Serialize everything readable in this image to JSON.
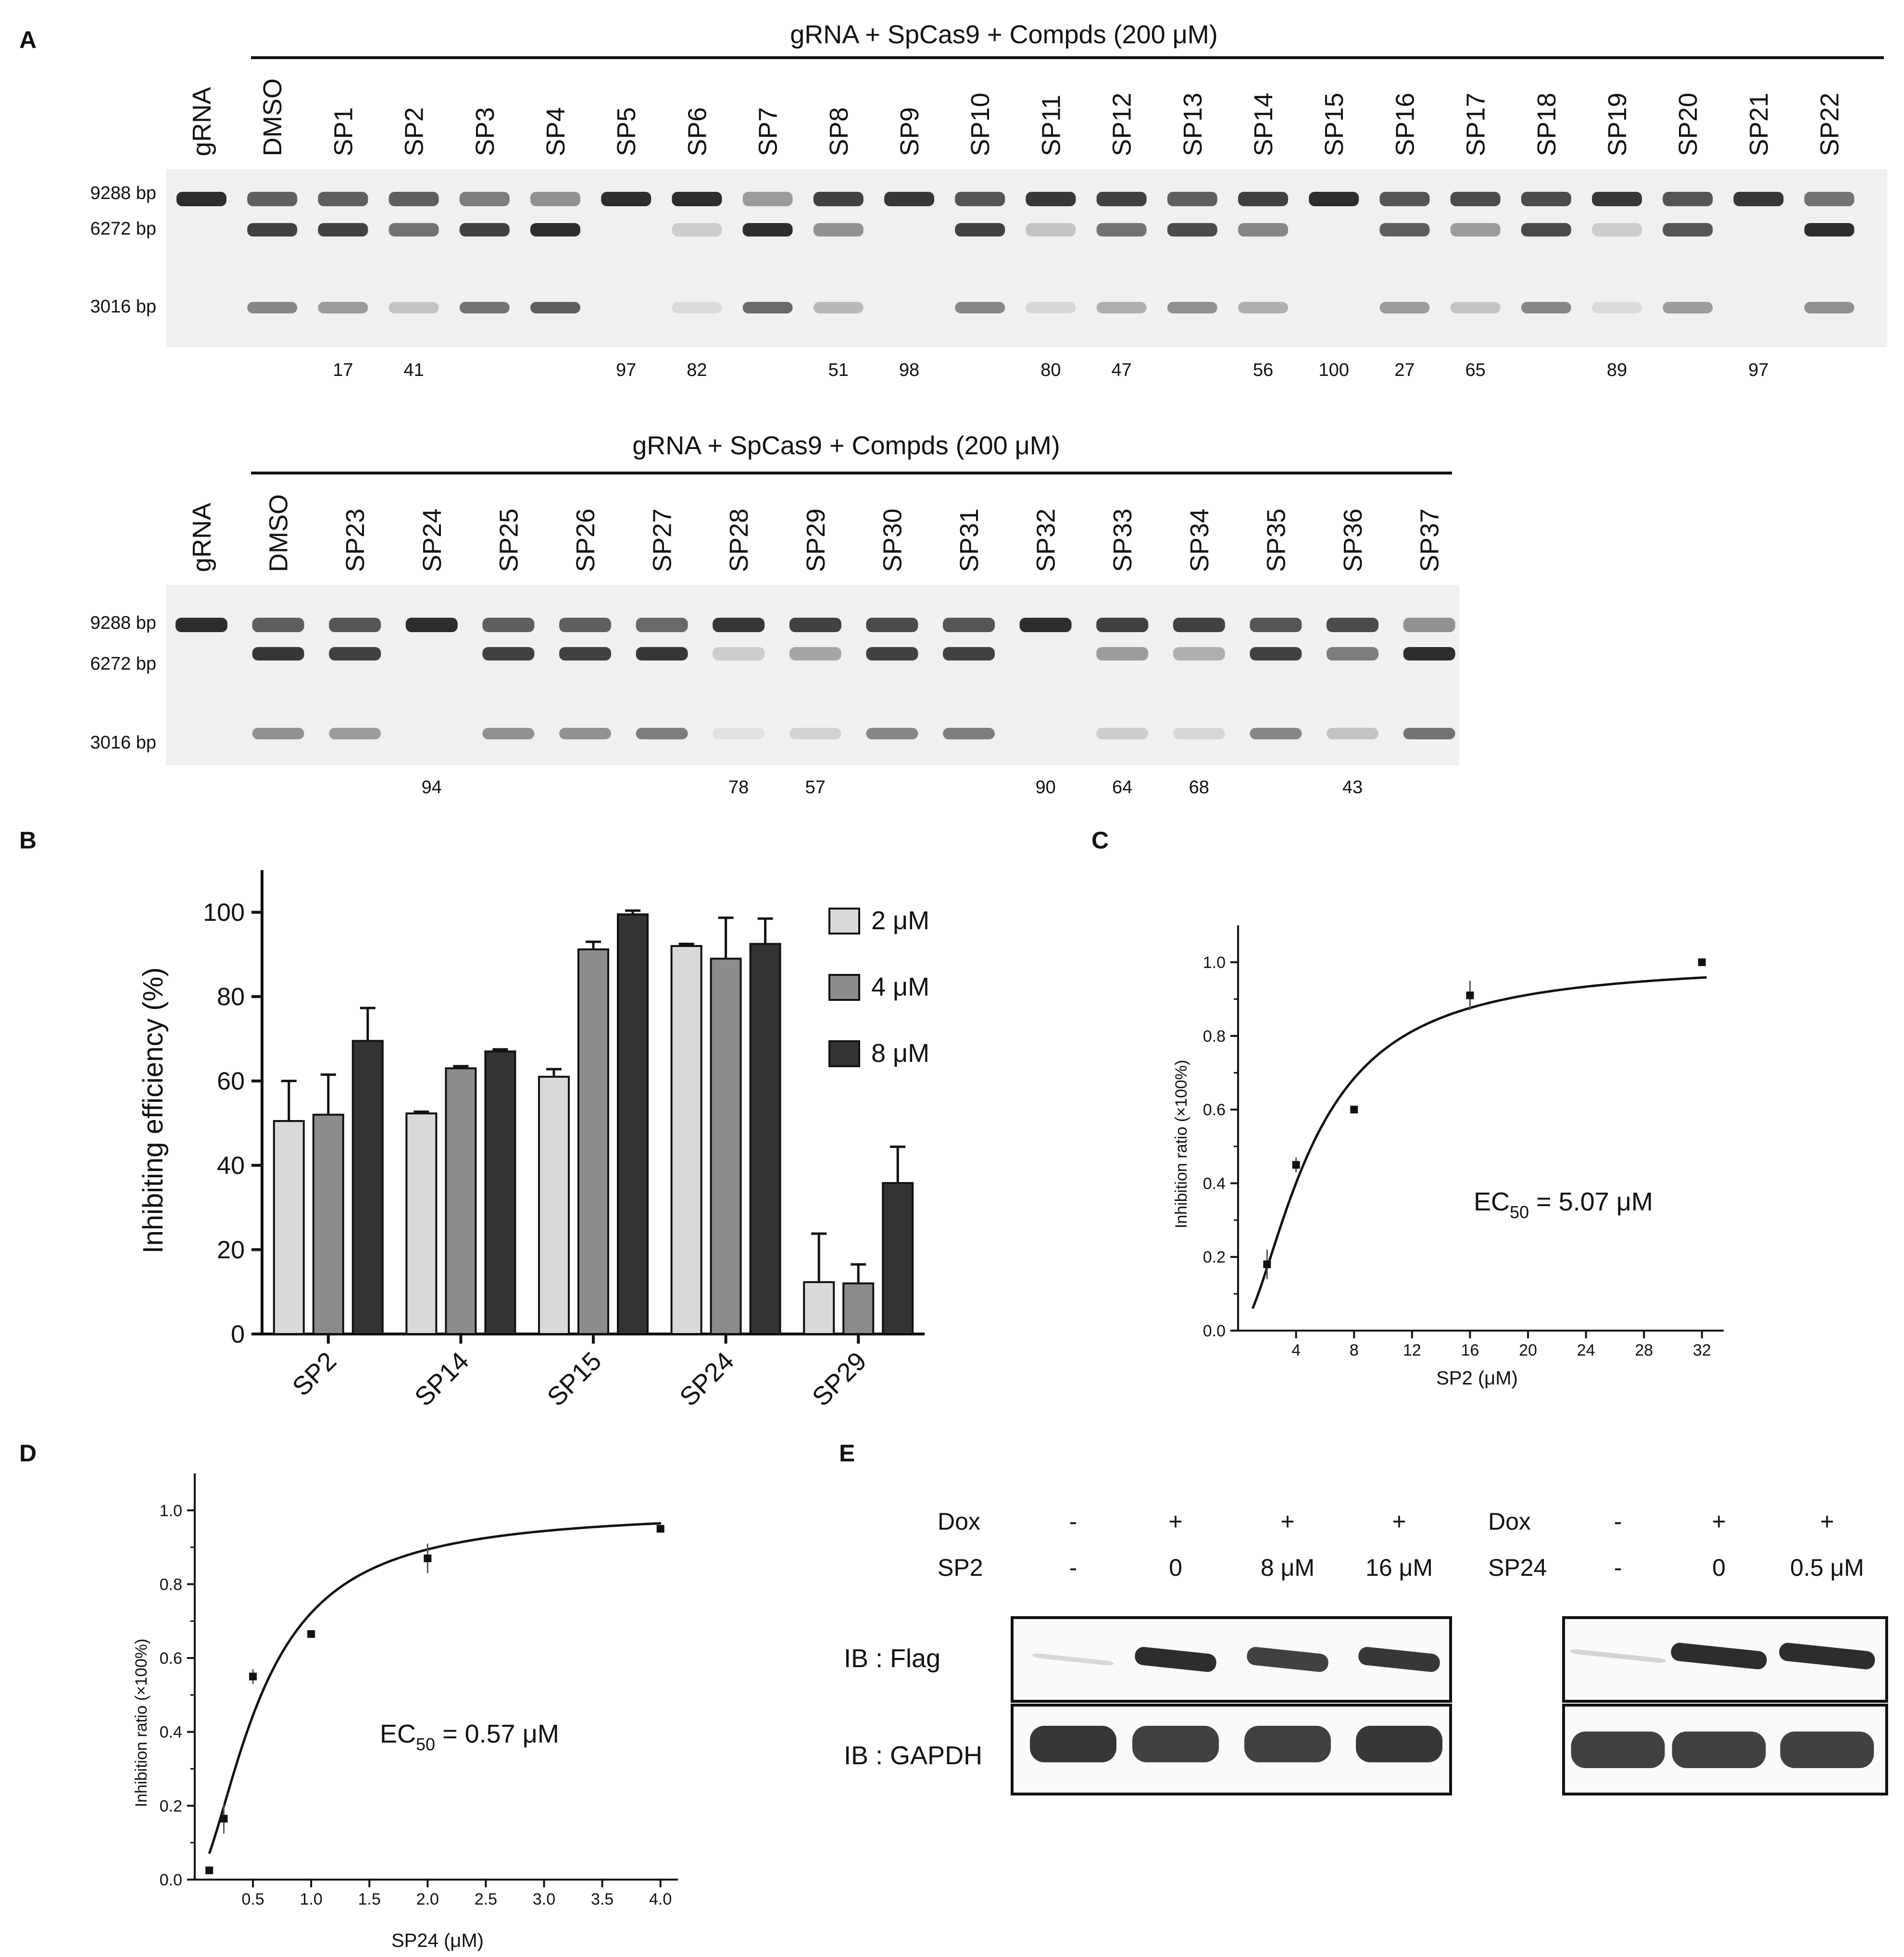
{
  "panels": {
    "A": "A",
    "B": "B",
    "C": "C",
    "D": "D",
    "E": "E"
  },
  "gel_top": {
    "header": "gRNA + SpCas9 + Compds (200 μM)",
    "lanes": [
      "gRNA",
      "DMSO",
      "SP1",
      "SP2",
      "SP3",
      "SP4",
      "SP5",
      "SP6",
      "SP7",
      "SP8",
      "SP9",
      "SP10",
      "SP11",
      "SP12",
      "SP13",
      "SP14",
      "SP15",
      "SP16",
      "SP17",
      "SP18",
      "SP19",
      "SP20",
      "SP21",
      "SP22"
    ],
    "markers": [
      "9288 bp",
      "6272 bp",
      "3016 bp"
    ],
    "values": [
      "",
      "",
      "17",
      "41",
      "",
      "",
      "97",
      "82",
      "",
      "51",
      "98",
      "",
      "80",
      "47",
      "",
      "56",
      "100",
      "27",
      "65",
      "",
      "89",
      "",
      "97",
      ""
    ],
    "band_intensity": {
      "b9288": [
        0.95,
        0.7,
        0.7,
        0.7,
        0.55,
        0.45,
        0.95,
        0.95,
        0.4,
        0.85,
        0.9,
        0.75,
        0.9,
        0.85,
        0.7,
        0.85,
        0.95,
        0.75,
        0.8,
        0.8,
        0.9,
        0.75,
        0.9,
        0.6
      ],
      "b6272": [
        0,
        0.85,
        0.85,
        0.6,
        0.85,
        0.95,
        0,
        0.15,
        0.95,
        0.45,
        0,
        0.85,
        0.2,
        0.6,
        0.8,
        0.5,
        0,
        0.7,
        0.4,
        0.8,
        0.15,
        0.75,
        0,
        0.95
      ],
      "b3016": [
        0,
        0.5,
        0.4,
        0.2,
        0.6,
        0.7,
        0,
        0.08,
        0.65,
        0.25,
        0,
        0.5,
        0.1,
        0.3,
        0.45,
        0.3,
        0,
        0.4,
        0.2,
        0.5,
        0.08,
        0.4,
        0,
        0.45
      ]
    }
  },
  "gel_bottom": {
    "header": "gRNA + SpCas9 + Compds (200 μM)",
    "lanes": [
      "gRNA",
      "DMSO",
      "SP23",
      "SP24",
      "SP25",
      "SP26",
      "SP27",
      "SP28",
      "SP29",
      "SP30",
      "SP31",
      "SP32",
      "SP33",
      "SP34",
      "SP35",
      "SP36",
      "SP37"
    ],
    "markers": [
      "9288 bp",
      "6272 bp",
      "3016 bp"
    ],
    "values": [
      "",
      "",
      "",
      "94",
      "",
      "",
      "",
      "78",
      "57",
      "",
      "",
      "90",
      "64",
      "68",
      "",
      "43",
      ""
    ],
    "band_intensity": {
      "b9288": [
        0.95,
        0.7,
        0.75,
        0.95,
        0.7,
        0.7,
        0.65,
        0.9,
        0.85,
        0.8,
        0.75,
        0.95,
        0.85,
        0.85,
        0.75,
        0.8,
        0.45
      ],
      "b6272": [
        0,
        0.9,
        0.85,
        0,
        0.85,
        0.85,
        0.9,
        0.15,
        0.35,
        0.85,
        0.85,
        0,
        0.4,
        0.3,
        0.85,
        0.55,
        0.95
      ],
      "b3016": [
        0,
        0.45,
        0.4,
        0,
        0.45,
        0.45,
        0.55,
        0.05,
        0.12,
        0.5,
        0.55,
        0,
        0.15,
        0.1,
        0.5,
        0.2,
        0.6
      ]
    }
  },
  "chart_data": [
    {
      "type": "bar",
      "categories": [
        "SP2",
        "SP14",
        "SP15",
        "SP24",
        "SP29"
      ],
      "series": [
        {
          "name": "2 μM",
          "values": [
            50.5,
            52.3,
            61.0,
            92.0,
            12.3
          ],
          "errors": [
            9.5,
            0.4,
            1.8,
            0.5,
            11.5
          ],
          "color": "#d9d9d9"
        },
        {
          "name": "4 μM",
          "values": [
            52.0,
            63.0,
            91.2,
            89.0,
            12.0
          ],
          "errors": [
            9.5,
            0.5,
            1.8,
            9.7,
            4.5
          ],
          "color": "#8c8c8c"
        },
        {
          "name": "8 μM",
          "values": [
            69.5,
            67.0,
            99.5,
            92.5,
            35.8
          ],
          "errors": [
            7.8,
            0.5,
            0.9,
            6.0,
            8.6
          ],
          "color": "#333333"
        }
      ],
      "ylabel": "Inhibiting efficiency (%)",
      "ylim": [
        0,
        110
      ],
      "yticks": [
        0,
        20,
        40,
        60,
        80,
        100
      ],
      "legend": "top-right"
    },
    {
      "type": "scatter",
      "points": [
        {
          "x": 2,
          "y": 0.18,
          "err": 0.04
        },
        {
          "x": 4,
          "y": 0.45,
          "err": 0.02
        },
        {
          "x": 8,
          "y": 0.6,
          "err": 0.005
        },
        {
          "x": 16,
          "y": 0.91,
          "err": 0.04
        },
        {
          "x": 32,
          "y": 1.0,
          "err": 0.005
        }
      ],
      "fit": {
        "ec50": 5.07,
        "hill": 1.7,
        "top": 1.0
      },
      "xlabel": "SP2 (μM)",
      "ylabel": "Inhibition ratio (×100%)",
      "xlim": [
        0,
        33.5
      ],
      "ylim": [
        0,
        1.1
      ],
      "xticks": [
        4,
        8,
        12,
        16,
        20,
        24,
        28,
        32
      ],
      "yticks": [
        0.0,
        0.2,
        0.4,
        0.6,
        0.8,
        1.0
      ],
      "ytick_labels": [
        "0.0",
        "0.2",
        "0.4",
        "0.6",
        "0.8",
        "1.0"
      ],
      "annotation_main": "EC",
      "annotation_sub": "50",
      "annotation_rest": " = 5.07 μM"
    },
    {
      "type": "scatter",
      "points": [
        {
          "x": 0.125,
          "y": 0.025,
          "err": 0.005
        },
        {
          "x": 0.25,
          "y": 0.165,
          "err": 0.04
        },
        {
          "x": 0.5,
          "y": 0.55,
          "err": 0.02
        },
        {
          "x": 1.0,
          "y": 0.665,
          "err": 0.01
        },
        {
          "x": 2.0,
          "y": 0.87,
          "err": 0.04
        },
        {
          "x": 4.0,
          "y": 0.95,
          "err": 0.01
        }
      ],
      "fit": {
        "ec50": 0.57,
        "hill": 1.7,
        "top": 1.0
      },
      "xlabel": "SP24 (μM)",
      "ylabel": "Inhibition ratio (×100%)",
      "xlim": [
        0,
        4.15
      ],
      "ylim": [
        0,
        1.1
      ],
      "xticks": [
        0.5,
        1.0,
        1.5,
        2.0,
        2.5,
        3.0,
        3.5,
        4.0
      ],
      "xtick_labels": [
        "0.5",
        "1.0",
        "1.5",
        "2.0",
        "2.5",
        "3.0",
        "3.5",
        "4.0"
      ],
      "yticks": [
        0.0,
        0.2,
        0.4,
        0.6,
        0.8,
        1.0
      ],
      "ytick_labels": [
        "0.0",
        "0.2",
        "0.4",
        "0.6",
        "0.8",
        "1.0"
      ],
      "annotation_main": "EC",
      "annotation_sub": "50",
      "annotation_rest": " = 0.57 μM"
    }
  ],
  "blot": {
    "left": {
      "dox_label": "Dox",
      "dox": [
        "-",
        "+",
        "+",
        "+"
      ],
      "cmpd_label": "SP2",
      "cmpd": [
        "-",
        "0",
        "8 μM",
        "16 μM"
      ],
      "flag_label": "IB : Flag",
      "gapdh_label": "IB : GAPDH",
      "flag_intensity": [
        0.1,
        0.95,
        0.85,
        0.9
      ],
      "gapdh_intensity": [
        0.9,
        0.85,
        0.85,
        0.9
      ]
    },
    "right": {
      "dox_label": "Dox",
      "dox": [
        "-",
        "+",
        "+"
      ],
      "cmpd_label": "SP24",
      "cmpd": [
        "-",
        "0",
        "0.5 μM"
      ],
      "flag_intensity": [
        0.12,
        0.95,
        0.95
      ],
      "gapdh_intensity": [
        0.85,
        0.85,
        0.85
      ]
    }
  }
}
